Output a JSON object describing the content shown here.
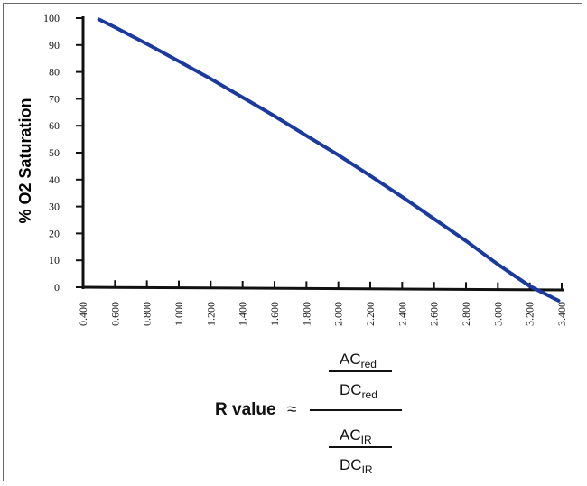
{
  "chart_data": {
    "type": "line",
    "title": "",
    "xlabel": "",
    "ylabel": "% O2 Saturation",
    "xlim": [
      0.4,
      3.4
    ],
    "ylim": [
      0,
      100
    ],
    "x_ticks": [
      "0.400",
      "0.600",
      "0.800",
      "1.000",
      "1.200",
      "1.400",
      "1.600",
      "1.800",
      "2.000",
      "2.200",
      "2.400",
      "2.600",
      "2.800",
      "3.000",
      "3.200",
      "3.400"
    ],
    "y_ticks": [
      "0",
      "10",
      "20",
      "30",
      "40",
      "50",
      "60",
      "70",
      "80",
      "90",
      "100"
    ],
    "grid": false,
    "line_color": "#1a3aa0",
    "series": [
      {
        "x": [
          0.5,
          0.6,
          0.8,
          1.0,
          1.2,
          1.4,
          1.6,
          1.8,
          2.0,
          2.2,
          2.4,
          2.6,
          2.8,
          3.0,
          3.2,
          3.3,
          3.38
        ],
        "values": [
          99.5,
          96.6,
          90.4,
          84.0,
          77.4,
          70.5,
          63.6,
          56.3,
          49.1,
          41.4,
          33.6,
          25.4,
          17.2,
          8.5,
          0.4,
          -2.6,
          -5.0
        ]
      }
    ]
  },
  "formula": {
    "lhs": "R value",
    "approx": "≈",
    "top_num": {
      "base": "AC",
      "sub": "red"
    },
    "top_den": {
      "base": "DC",
      "sub": "red"
    },
    "bot_num": {
      "base": "AC",
      "sub": "IR"
    },
    "bot_den": {
      "base": "DC",
      "sub": "IR"
    }
  }
}
